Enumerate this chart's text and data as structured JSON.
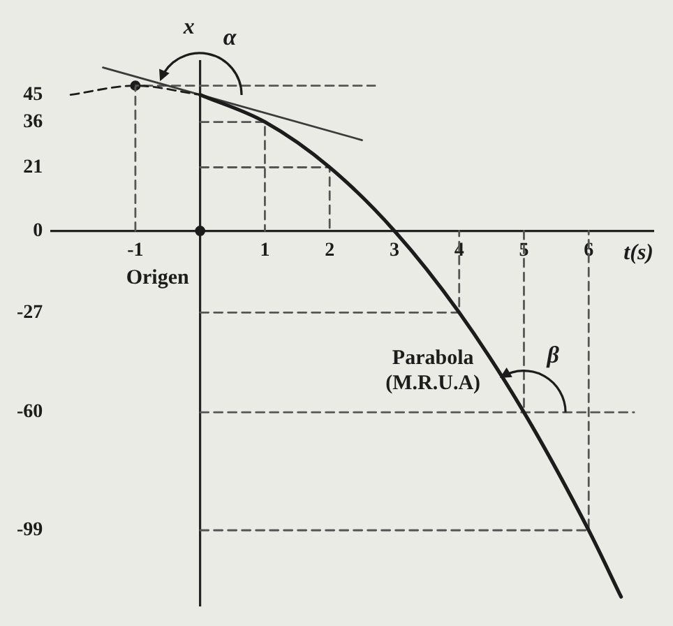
{
  "chart_data": {
    "type": "line",
    "xlabel": "t(s)",
    "ylabel": "x",
    "x": [
      0,
      1,
      2,
      3,
      4,
      5,
      6,
      6.5
    ],
    "xlim": [
      -2.3,
      7
    ],
    "xticks": [
      -1,
      1,
      2,
      3,
      4,
      5,
      6
    ],
    "ylim": [
      -124,
      56
    ],
    "yticks": [
      -99,
      -60,
      -27,
      0,
      21,
      36,
      45
    ],
    "series": [
      {
        "color": "#1c1c1c",
        "values": [
          45,
          36,
          21,
          0,
          -27,
          -60,
          -99,
          -121
        ]
      },
      {
        "color": "#1c1c1c",
        "x": [
          -2,
          -1,
          0
        ],
        "values": [
          45,
          48,
          45
        ],
        "line_style": "dashed"
      },
      {
        "color": "#3b3b3b",
        "x": [
          -1.5,
          2.5
        ],
        "values": [
          54,
          30
        ]
      },
      {
        "color": "#555555",
        "x": [
          -1,
          -1,
          2.7
        ],
        "values": [
          0,
          48,
          48
        ],
        "line_style": "dashed"
      },
      {
        "color": "#555555",
        "x": [
          0,
          1,
          1
        ],
        "values": [
          36,
          36,
          0
        ],
        "line_style": "dashed"
      },
      {
        "color": "#555555",
        "x": [
          0,
          2,
          2
        ],
        "values": [
          21,
          21,
          0
        ],
        "line_style": "dashed"
      },
      {
        "color": "#555555",
        "x": [
          0,
          4,
          4
        ],
        "values": [
          -27,
          -27,
          0
        ],
        "line_style": "dashed"
      },
      {
        "color": "#555555",
        "x": [
          0,
          6.7
        ],
        "values": [
          -60,
          -60
        ],
        "line_style": "dashed"
      },
      {
        "color": "#555555",
        "x": [
          5,
          5
        ],
        "values": [
          0,
          -60
        ],
        "line_style": "dashed"
      },
      {
        "color": "#555555",
        "x": [
          0,
          6,
          6
        ],
        "values": [
          -99,
          -99,
          0
        ],
        "line_style": "dashed"
      },
      {
        "type": "scatter",
        "color": "#1c1c1c",
        "x": [
          -1,
          0
        ],
        "values": [
          48,
          0
        ],
        "marker": "circle"
      }
    ],
    "annotations": [
      {
        "text": "α",
        "x": 0,
        "y": 45
      },
      {
        "text": "β",
        "x": 5,
        "y": -60
      },
      "Origen",
      {
        "text": "Parabola (M.R.U.A)",
        "x": 4.5,
        "y": -42.75
      }
    ],
    "marker": "none",
    "line_style": "solid",
    "grid": false,
    "legend": false
  }
}
